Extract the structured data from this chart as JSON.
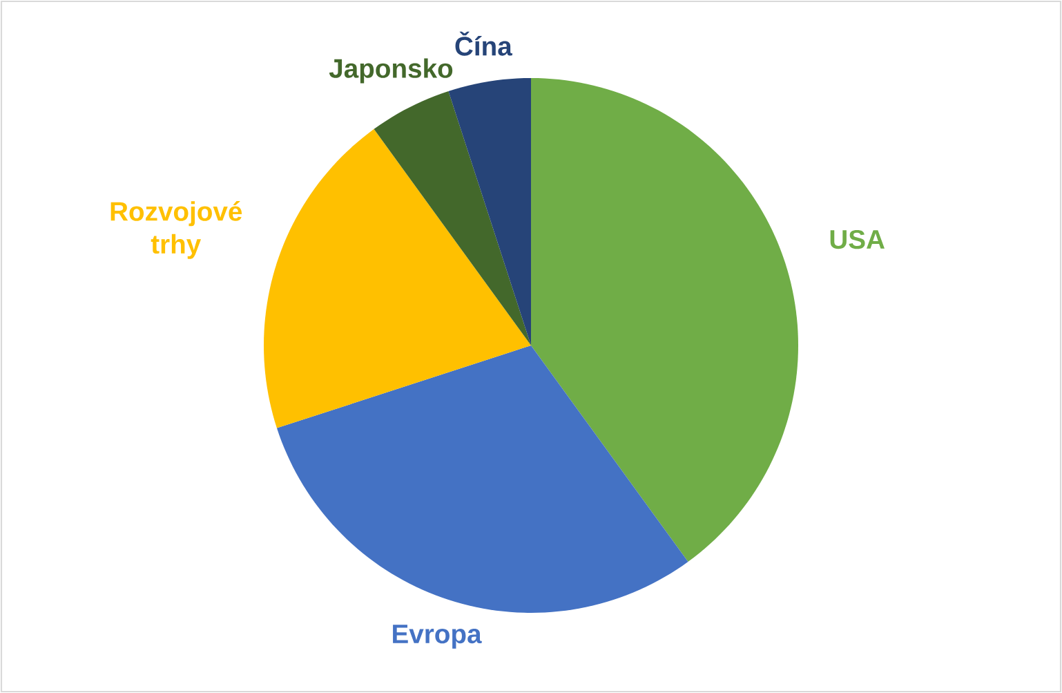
{
  "chart_data": {
    "type": "pie",
    "categories": [
      "USA",
      "Evropa",
      "Rozvojové trhy",
      "Japonsko",
      "Čína"
    ],
    "values": [
      40,
      30,
      20,
      5,
      5
    ],
    "colors": [
      "#70ad47",
      "#4472c4",
      "#ffc000",
      "#43682b",
      "#264478"
    ]
  }
}
